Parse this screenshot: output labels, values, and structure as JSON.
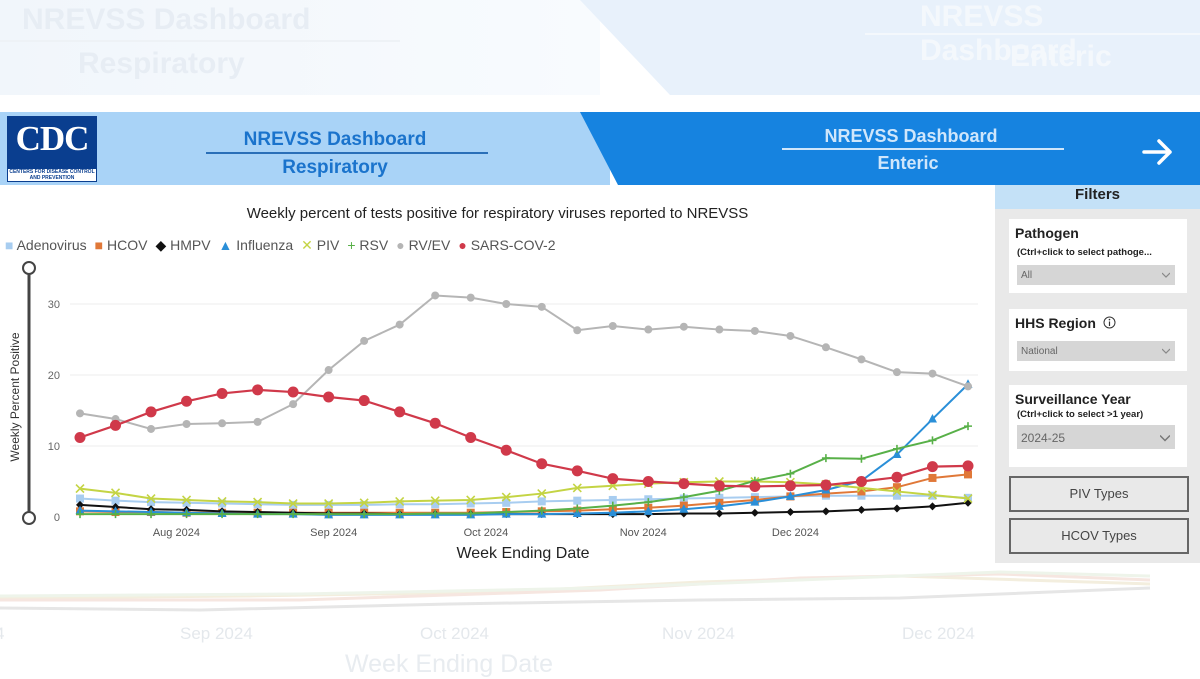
{
  "header": {
    "left_tab": {
      "line1": "NREVSS Dashboard",
      "line2": "Respiratory"
    },
    "right_tab": {
      "line1": "NREVSS Dashboard",
      "line2": "Enteric"
    },
    "logo": {
      "text": "CDC",
      "subtext": "CENTERS FOR DISEASE CONTROL AND PREVENTION"
    },
    "arrow_icon": "arrow-right-icon"
  },
  "filters": {
    "title": "Filters",
    "pathogen": {
      "label": "Pathogen",
      "hint": "(Ctrl+click to select pathoge...",
      "value": "All"
    },
    "hhs_region": {
      "label": "HHS Region",
      "value": "National",
      "icon": "info-icon"
    },
    "surveillance_year": {
      "label": "Surveillance Year",
      "hint": "(Ctrl+click to select >1 year)",
      "value": "2024-25"
    },
    "buttons": [
      "PIV Types",
      "HCOV Types"
    ]
  },
  "chart_data": {
    "type": "line",
    "title": "Weekly percent of tests positive for respiratory viruses reported to NREVSS",
    "xlabel": "Week Ending Date",
    "ylabel": "Weekly Percent Positive",
    "ylim": [
      0,
      33
    ],
    "yticks": [
      0,
      10,
      20,
      30
    ],
    "x": [
      "2024-07-13",
      "2024-07-20",
      "2024-07-27",
      "2024-08-03",
      "2024-08-10",
      "2024-08-17",
      "2024-08-24",
      "2024-08-31",
      "2024-09-07",
      "2024-09-14",
      "2024-09-21",
      "2024-09-28",
      "2024-10-05",
      "2024-10-12",
      "2024-10-19",
      "2024-10-26",
      "2024-11-02",
      "2024-11-09",
      "2024-11-16",
      "2024-11-23",
      "2024-11-30",
      "2024-12-07",
      "2024-12-14",
      "2024-12-21",
      "2024-12-28",
      "2025-01-04"
    ],
    "xticks": [
      {
        "value": "2024-08-01",
        "label": "Aug 2024"
      },
      {
        "value": "2024-09-01",
        "label": "Sep 2024"
      },
      {
        "value": "2024-10-01",
        "label": "Oct 2024"
      },
      {
        "value": "2024-11-01",
        "label": "Nov 2024"
      },
      {
        "value": "2024-12-01",
        "label": "Dec 2024"
      }
    ],
    "grid": true,
    "legend_position": "top-left",
    "series": [
      {
        "name": "Adenovirus",
        "color": "#a8cdf0",
        "marker": "square",
        "values": [
          2.6,
          2.3,
          2.1,
          2.0,
          1.9,
          1.8,
          1.7,
          1.7,
          1.7,
          1.8,
          1.8,
          1.9,
          2.0,
          2.2,
          2.3,
          2.4,
          2.5,
          2.6,
          2.7,
          2.8,
          2.9,
          3.0,
          3.0,
          3.0,
          3.0,
          2.7
        ]
      },
      {
        "name": "HCOV",
        "color": "#e07838",
        "marker": "square",
        "values": [
          0.8,
          0.7,
          0.7,
          0.6,
          0.6,
          0.6,
          0.6,
          0.6,
          0.6,
          0.6,
          0.6,
          0.6,
          0.7,
          0.8,
          0.9,
          1.1,
          1.3,
          1.6,
          2.0,
          2.4,
          2.9,
          3.3,
          3.6,
          4.2,
          5.5,
          6.0
        ]
      },
      {
        "name": "HMPV",
        "color": "#111111",
        "marker": "diamond",
        "values": [
          1.7,
          1.4,
          1.1,
          1.0,
          0.8,
          0.7,
          0.6,
          0.5,
          0.5,
          0.4,
          0.4,
          0.4,
          0.4,
          0.4,
          0.4,
          0.4,
          0.4,
          0.5,
          0.5,
          0.6,
          0.7,
          0.8,
          1.0,
          1.2,
          1.5,
          2.0
        ]
      },
      {
        "name": "Influenza",
        "color": "#2a8fd8",
        "marker": "triangle",
        "values": [
          0.9,
          0.8,
          0.7,
          0.6,
          0.5,
          0.4,
          0.4,
          0.3,
          0.3,
          0.3,
          0.3,
          0.3,
          0.4,
          0.4,
          0.5,
          0.6,
          0.8,
          1.1,
          1.5,
          2.1,
          2.9,
          3.8,
          5.1,
          8.8,
          13.8,
          18.7
        ]
      },
      {
        "name": "PIV",
        "color": "#c4d444",
        "marker": "x",
        "values": [
          4.0,
          3.4,
          2.6,
          2.4,
          2.2,
          2.1,
          1.9,
          1.9,
          2.0,
          2.2,
          2.3,
          2.4,
          2.8,
          3.3,
          4.1,
          4.4,
          4.7,
          4.9,
          5.0,
          5.0,
          4.9,
          4.6,
          4.1,
          3.6,
          3.1,
          2.6
        ]
      },
      {
        "name": "RSV",
        "color": "#58b048",
        "marker": "plus",
        "values": [
          0.4,
          0.4,
          0.4,
          0.4,
          0.4,
          0.4,
          0.4,
          0.4,
          0.4,
          0.4,
          0.5,
          0.5,
          0.7,
          0.9,
          1.2,
          1.6,
          2.1,
          2.8,
          3.7,
          5.1,
          6.1,
          8.3,
          8.2,
          9.6,
          10.8,
          12.8
        ]
      },
      {
        "name": "RV/EV",
        "color": "#b5b5b5",
        "marker": "circle",
        "values": [
          14.6,
          13.8,
          12.4,
          13.1,
          13.2,
          13.4,
          15.9,
          20.7,
          24.8,
          27.1,
          31.2,
          30.9,
          30.0,
          29.6,
          26.3,
          26.9,
          26.4,
          26.8,
          26.4,
          26.2,
          25.5,
          23.9,
          22.2,
          20.4,
          20.2,
          18.4
        ]
      },
      {
        "name": "SARS-COV-2",
        "color": "#d0394a",
        "marker": "circle",
        "values": [
          11.2,
          12.9,
          14.8,
          16.3,
          17.4,
          17.9,
          17.6,
          16.9,
          16.4,
          14.8,
          13.2,
          11.2,
          9.4,
          7.5,
          6.5,
          5.4,
          5.0,
          4.7,
          4.4,
          4.3,
          4.4,
          4.5,
          5.0,
          5.6,
          7.1,
          7.2
        ]
      }
    ]
  },
  "background_ghost": {
    "left_line1": "NREVSS Dashboard",
    "left_line2": "Respiratory",
    "right_line1": "NREVSS Dashboard",
    "right_line2": "Enteric",
    "ticks": [
      "Sep 2024",
      "Oct 2024",
      "Nov 2024",
      "Dec 2024"
    ],
    "xlabel": "Week Ending Date"
  }
}
